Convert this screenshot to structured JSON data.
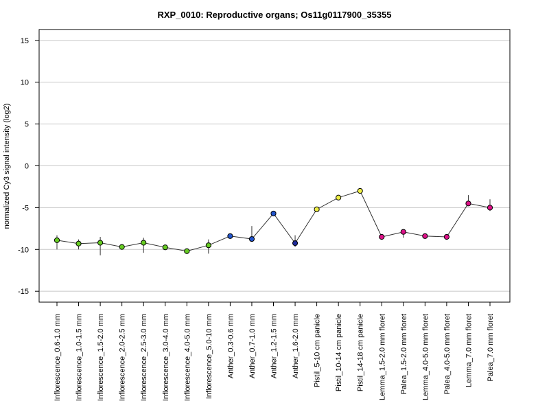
{
  "chart_data": {
    "type": "line",
    "title": "RXP_0010: Reproductive organs; Os11g0117900_35355",
    "ylabel": "normalized Cy3 signal intensity (log2)",
    "xlabel": "",
    "ylim": [
      -16.3,
      16.3
    ],
    "yticks": [
      -15,
      -10,
      -5,
      0,
      5,
      10,
      15
    ],
    "grid": "horizontal",
    "categories": [
      "Inflorescence_0.6-1.0 mm",
      "Inflorescence_1.0-1.5 mm",
      "Inflorescence_1.5-2.0 mm",
      "Inflorescence_2.0-2.5 mm",
      "Inflorescence_2.5-3.0 mm",
      "Inflorescence_3.0-4.0 mm",
      "Inflorescence_4.0-5.0 mm",
      "Inflorescence_5.0-10 mm",
      "Anther_0.3-0.6 mm",
      "Anther_0.7-1.0 mm",
      "Anther_1.2-1.5 mm",
      "Anther_1.6-2.0 mm",
      "Pistil_5-10 cm panicle",
      "Pistil_10-14 cm panicle",
      "Pistil_14-18 cm panicle",
      "Lemma_1.5-2.0 mm floret",
      "Palea_1.5-2.0 mm floret",
      "Lemma_4.0-5.0 mm floret",
      "Palea_4.0-5.0 mm floret",
      "Lemma_7.0 mm floret",
      "Palea_7.0 mm floret"
    ],
    "values": [
      -8.9,
      -9.3,
      -9.2,
      -9.7,
      -9.2,
      -9.75,
      -10.2,
      -9.5,
      -8.4,
      -8.75,
      -5.7,
      -9.25,
      -5.2,
      -3.8,
      -3.0,
      -8.5,
      -7.9,
      -8.4,
      -8.5,
      -4.5,
      -5.0
    ],
    "err_low": [
      -10.0,
      -10.0,
      -10.7,
      -9.8,
      -10.4,
      -9.9,
      -10.5,
      -10.5,
      -8.5,
      -8.9,
      -5.8,
      -9.7,
      -5.4,
      -4.1,
      -3.2,
      -8.6,
      -8.6,
      -8.5,
      -8.8,
      -4.6,
      -5.4
    ],
    "err_high": [
      -8.3,
      -8.8,
      -8.5,
      -9.6,
      -8.6,
      -9.6,
      -9.9,
      -8.8,
      -8.3,
      -7.2,
      -5.6,
      -8.3,
      -5.0,
      -3.5,
      -2.7,
      -8.4,
      -7.6,
      -8.3,
      -8.3,
      -3.5,
      -4.0
    ],
    "point_colors": [
      "#66cc22",
      "#66cc22",
      "#66cc22",
      "#66cc22",
      "#66cc22",
      "#66cc22",
      "#66cc22",
      "#66cc22",
      "#2255cc",
      "#2255cc",
      "#2255cc",
      "#1e2a99",
      "#eeee44",
      "#eeee44",
      "#eeee44",
      "#dd1188",
      "#dd1188",
      "#dd1188",
      "#dd1188",
      "#dd1188",
      "#dd1188"
    ],
    "line_color": "#333333",
    "grid_color": "#c8c8c8"
  }
}
